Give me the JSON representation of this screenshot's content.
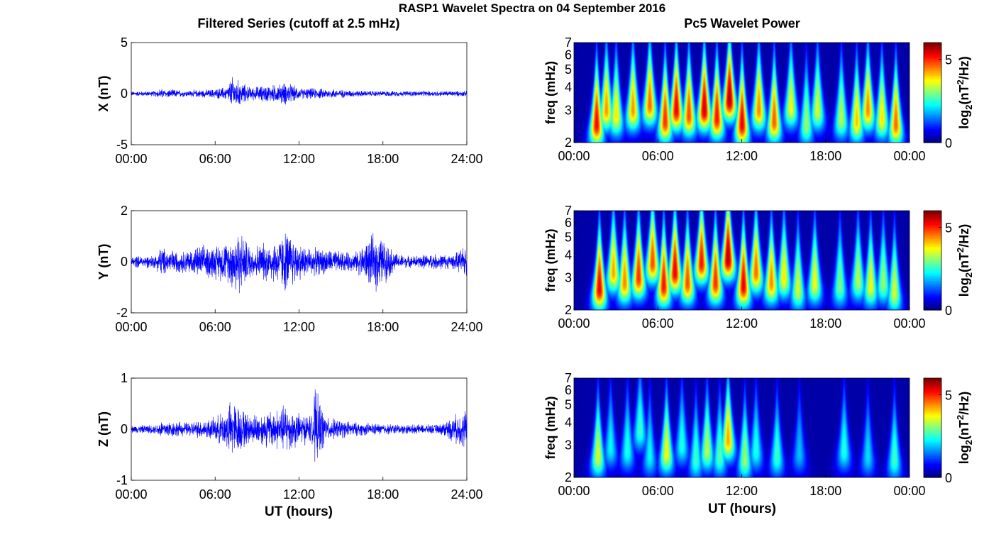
{
  "figure": {
    "title": "RASP1 Wavelet Spectra on 04 September 2016",
    "left_title": "Filtered Series (cutoff at 2.5 mHz)",
    "right_title": "Pc5 Wavelet Power",
    "xlabel": "UT (hours)"
  },
  "colors": {
    "trace": "#0000ff",
    "background": "#00008f"
  },
  "chart_data": [
    {
      "type": "line",
      "component": "X",
      "ylabel": "X (nT)",
      "ylim": [
        -5,
        5
      ],
      "yticks": [
        "5",
        "0",
        "-5"
      ],
      "xlim": [
        0,
        24
      ],
      "xticks": [
        "00:00",
        "06:00",
        "12:00",
        "18:00",
        "24:00"
      ],
      "amplitude_profile": {
        "hours": [
          0,
          1.7,
          2,
          4,
          6,
          6.9,
          7.2,
          8.5,
          9.5,
          10.5,
          11.1,
          12,
          13,
          14.5,
          16,
          17.5,
          19,
          21,
          23,
          24
        ],
        "envelope_nT": [
          0.25,
          0.3,
          0.55,
          0.35,
          0.5,
          0.8,
          1.9,
          0.7,
          0.9,
          1.0,
          1.3,
          0.6,
          0.6,
          0.5,
          0.35,
          0.3,
          0.3,
          0.3,
          0.3,
          0.3
        ]
      }
    },
    {
      "type": "line",
      "component": "Y",
      "ylabel": "Y (nT)",
      "ylim": [
        -2,
        2
      ],
      "yticks": [
        "2",
        "0",
        "-2"
      ],
      "xlim": [
        0,
        24
      ],
      "xticks": [
        "00:00",
        "06:00",
        "12:00",
        "18:00",
        "24:00"
      ],
      "amplitude_profile": {
        "hours": [
          0,
          1.8,
          2,
          3.5,
          5,
          6,
          7,
          7.5,
          8.5,
          10,
          10.5,
          11.1,
          12,
          13,
          14,
          15,
          16,
          17.5,
          19,
          20,
          21.5,
          23,
          24
        ],
        "envelope_nT": [
          0.25,
          0.3,
          0.65,
          0.45,
          0.7,
          0.75,
          0.9,
          1.6,
          0.7,
          0.9,
          1.0,
          1.4,
          0.8,
          0.6,
          0.55,
          0.45,
          0.4,
          1.3,
          0.35,
          0.25,
          0.35,
          0.3,
          0.7
        ]
      }
    },
    {
      "type": "line",
      "component": "Z",
      "ylabel": "Z (nT)",
      "ylim": [
        -1,
        1
      ],
      "yticks": [
        "1",
        "0",
        "-1"
      ],
      "xlim": [
        0,
        24
      ],
      "xticks": [
        "00:00",
        "06:00",
        "12:00",
        "18:00",
        "24:00"
      ],
      "amplitude_profile": {
        "hours": [
          0,
          1.8,
          2,
          4,
          6,
          6.8,
          7.2,
          8.5,
          9,
          10.5,
          11.1,
          12,
          13,
          13.1,
          14,
          16,
          18,
          20,
          22,
          24
        ],
        "envelope_nT": [
          0.08,
          0.1,
          0.2,
          0.15,
          0.25,
          0.45,
          0.65,
          0.3,
          0.35,
          0.45,
          0.55,
          0.35,
          0.3,
          0.9,
          0.25,
          0.15,
          0.12,
          0.1,
          0.1,
          0.45
        ]
      }
    },
    {
      "type": "heatmap",
      "component": "X",
      "ylabel": "freq (mHz)",
      "y_scale": "log",
      "ylim": [
        2,
        7
      ],
      "yticks": [
        "2",
        "3",
        "4",
        "5",
        "6",
        "7"
      ],
      "xlim": [
        0,
        24
      ],
      "xticks": [
        "00:00",
        "06:00",
        "12:00",
        "18:00",
        "00:00"
      ],
      "colorbar": {
        "label": "log2(nT2/Hz)",
        "ticks": [
          "0",
          "5"
        ],
        "range": [
          0,
          6
        ],
        "colormap": "jet"
      },
      "power_peaks": [
        {
          "t": 1.6,
          "f": 2.5,
          "p": 5.5
        },
        {
          "t": 2.3,
          "f": 3.0,
          "p": 4.5
        },
        {
          "t": 3.0,
          "f": 2.8,
          "p": 4.0
        },
        {
          "t": 4.2,
          "f": 3.0,
          "p": 4.5
        },
        {
          "t": 5.4,
          "f": 3.2,
          "p": 4.8
        },
        {
          "t": 6.5,
          "f": 2.6,
          "p": 5.2
        },
        {
          "t": 7.3,
          "f": 3.0,
          "p": 5.6
        },
        {
          "t": 8.2,
          "f": 2.8,
          "p": 5.0
        },
        {
          "t": 9.3,
          "f": 3.0,
          "p": 5.8
        },
        {
          "t": 10.2,
          "f": 2.7,
          "p": 5.4
        },
        {
          "t": 11.1,
          "f": 3.4,
          "p": 6.0
        },
        {
          "t": 12.0,
          "f": 2.5,
          "p": 5.6
        },
        {
          "t": 13.2,
          "f": 3.0,
          "p": 4.6
        },
        {
          "t": 14.3,
          "f": 2.6,
          "p": 4.9
        },
        {
          "t": 15.5,
          "f": 3.1,
          "p": 3.8
        },
        {
          "t": 16.6,
          "f": 2.5,
          "p": 3.2
        },
        {
          "t": 17.4,
          "f": 3.0,
          "p": 3.6
        },
        {
          "t": 19.1,
          "f": 2.7,
          "p": 3.4
        },
        {
          "t": 20.2,
          "f": 2.6,
          "p": 4.2
        },
        {
          "t": 21.0,
          "f": 3.0,
          "p": 4.6
        },
        {
          "t": 22.0,
          "f": 2.7,
          "p": 4.0
        },
        {
          "t": 23.0,
          "f": 2.5,
          "p": 4.8
        }
      ]
    },
    {
      "type": "heatmap",
      "component": "Y",
      "ylabel": "freq (mHz)",
      "y_scale": "log",
      "ylim": [
        2,
        7
      ],
      "yticks": [
        "2",
        "3",
        "4",
        "5",
        "6",
        "7"
      ],
      "xlim": [
        0,
        24
      ],
      "xticks": [
        "00:00",
        "06:00",
        "12:00",
        "18:00",
        "00:00"
      ],
      "colorbar": {
        "label": "log2(nT2/Hz)",
        "ticks": [
          "0",
          "5"
        ],
        "range": [
          0,
          6
        ],
        "colormap": "jet"
      },
      "power_peaks": [
        {
          "t": 1.8,
          "f": 2.6,
          "p": 5.6
        },
        {
          "t": 2.8,
          "f": 3.2,
          "p": 4.4
        },
        {
          "t": 3.6,
          "f": 2.8,
          "p": 4.6
        },
        {
          "t": 4.6,
          "f": 3.0,
          "p": 5.2
        },
        {
          "t": 5.6,
          "f": 3.6,
          "p": 5.0
        },
        {
          "t": 6.4,
          "f": 2.7,
          "p": 5.4
        },
        {
          "t": 7.2,
          "f": 3.2,
          "p": 5.6
        },
        {
          "t": 8.1,
          "f": 2.8,
          "p": 5.0
        },
        {
          "t": 9.1,
          "f": 3.6,
          "p": 5.4
        },
        {
          "t": 10.1,
          "f": 2.8,
          "p": 5.2
        },
        {
          "t": 11.0,
          "f": 3.8,
          "p": 6.0
        },
        {
          "t": 12.1,
          "f": 2.7,
          "p": 5.6
        },
        {
          "t": 13.0,
          "f": 3.2,
          "p": 4.8
        },
        {
          "t": 14.1,
          "f": 2.8,
          "p": 4.6
        },
        {
          "t": 15.0,
          "f": 3.0,
          "p": 4.0
        },
        {
          "t": 16.0,
          "f": 2.6,
          "p": 3.6
        },
        {
          "t": 17.2,
          "f": 2.8,
          "p": 3.8
        },
        {
          "t": 19.0,
          "f": 2.7,
          "p": 3.0
        },
        {
          "t": 20.3,
          "f": 2.9,
          "p": 3.4
        },
        {
          "t": 21.2,
          "f": 2.7,
          "p": 3.8
        },
        {
          "t": 22.1,
          "f": 2.8,
          "p": 3.2
        },
        {
          "t": 22.9,
          "f": 2.5,
          "p": 3.6
        }
      ]
    },
    {
      "type": "heatmap",
      "component": "Z",
      "ylabel": "freq (mHz)",
      "y_scale": "log",
      "ylim": [
        2,
        7
      ],
      "yticks": [
        "2",
        "3",
        "4",
        "5",
        "6",
        "7"
      ],
      "xlim": [
        0,
        24
      ],
      "xticks": [
        "00:00",
        "06:00",
        "12:00",
        "18:00",
        "00:00"
      ],
      "colorbar": {
        "label": "log2(nT2/Hz)",
        "ticks": [
          "0",
          "5"
        ],
        "range": [
          0,
          6
        ],
        "colormap": "jet"
      },
      "power_peaks": [
        {
          "t": 1.7,
          "f": 2.6,
          "p": 3.6
        },
        {
          "t": 2.6,
          "f": 2.9,
          "p": 2.2
        },
        {
          "t": 3.8,
          "f": 2.8,
          "p": 2.4
        },
        {
          "t": 4.7,
          "f": 3.6,
          "p": 2.6
        },
        {
          "t": 5.4,
          "f": 2.6,
          "p": 2.2
        },
        {
          "t": 6.6,
          "f": 2.7,
          "p": 3.8
        },
        {
          "t": 7.7,
          "f": 3.0,
          "p": 2.4
        },
        {
          "t": 8.7,
          "f": 2.5,
          "p": 2.6
        },
        {
          "t": 9.5,
          "f": 2.8,
          "p": 3.4
        },
        {
          "t": 10.4,
          "f": 2.6,
          "p": 2.8
        },
        {
          "t": 11.0,
          "f": 3.2,
          "p": 4.4
        },
        {
          "t": 12.2,
          "f": 2.5,
          "p": 3.2
        },
        {
          "t": 13.0,
          "f": 2.8,
          "p": 2.4
        },
        {
          "t": 14.5,
          "f": 2.6,
          "p": 2.6
        },
        {
          "t": 16.1,
          "f": 2.7,
          "p": 1.8
        },
        {
          "t": 19.3,
          "f": 2.8,
          "p": 2.4
        },
        {
          "t": 21.0,
          "f": 2.6,
          "p": 2.0
        },
        {
          "t": 22.9,
          "f": 2.5,
          "p": 2.6
        }
      ]
    }
  ]
}
